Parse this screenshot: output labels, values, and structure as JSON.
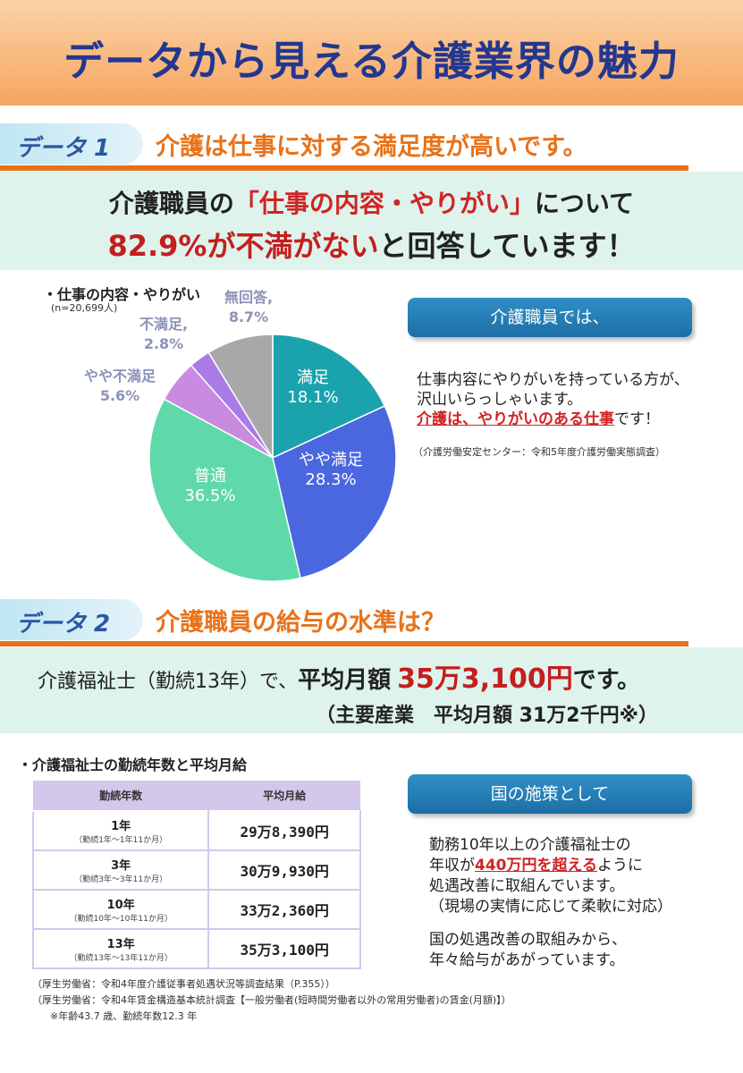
{
  "title": "データから見える介護業界の魅力",
  "section1": {
    "tag": "データ 1",
    "heading": "介護は仕事に対する満足度が高いです。",
    "line1_a": "介護職員の",
    "line1_b": "「仕事の内容・やりがい」",
    "line1_c": "について",
    "line2_a": "82.9%が不満がない",
    "line2_b": "と回答しています！"
  },
  "pie": {
    "title": "・仕事の内容・やりがい",
    "n": "(n=20,699人)",
    "slices": [
      {
        "name": "満足",
        "value": 18.1,
        "label": "18.1%",
        "color": "#1aa3ad"
      },
      {
        "name": "やや満足",
        "value": 28.3,
        "label": "28.3%",
        "color": "#4a67e0"
      },
      {
        "name": "普通",
        "value": 36.5,
        "label": "36.5%",
        "color": "#5fd9a9"
      },
      {
        "name": "やや不満足",
        "value": 5.6,
        "label": "5.6%",
        "color": "#c98be0"
      },
      {
        "name": "不満足,",
        "value": 2.8,
        "label": "2.8%",
        "color": "#a97be6"
      },
      {
        "name": "無回答,",
        "value": 8.7,
        "label": "8.7%",
        "color": "#a8a8a8"
      }
    ]
  },
  "chart_data": {
    "type": "pie",
    "title": "・仕事の内容・やりがい",
    "categories": [
      "満足",
      "やや満足",
      "普通",
      "やや不満足",
      "不満足",
      "無回答"
    ],
    "values": [
      18.1,
      28.3,
      36.5,
      5.6,
      2.8,
      8.7
    ]
  },
  "box1": {
    "pill": "介護職員では、",
    "line1": "仕事内容にやりがいを持っている方が、",
    "line2": "沢山いらっしゃいます。",
    "line3_red": "介護は、やりがいのある仕事",
    "line3_end": "です！",
    "source": "（介護労働安定センター：令和5年度介護労働実態調査）"
  },
  "section2": {
    "tag": "データ 2",
    "heading": "介護職員の給与の水準は？",
    "line1_a": "介護福祉士（勤続13年）で、",
    "line1_b": "平均月額",
    "line1_c": "35万3,100円",
    "line1_d": "です。",
    "line2": "（主要産業　平均月額 31万2千円※）"
  },
  "table": {
    "title": "・介護福祉士の勤続年数と平均月給",
    "headers": [
      "勤続年数",
      "平均月給"
    ],
    "rows": [
      {
        "year": "1年",
        "range": "（勤続1年～1年11か月）",
        "pay": "29万8,390円"
      },
      {
        "year": "3年",
        "range": "（勤続3年～3年11か月）",
        "pay": "30万9,930円"
      },
      {
        "year": "10年",
        "range": "（勤続10年～10年11か月）",
        "pay": "33万2,360円"
      },
      {
        "year": "13年",
        "range": "（勤続13年～13年11か月）",
        "pay": "35万3,100円"
      }
    ]
  },
  "box2": {
    "pill": "国の施策として",
    "line1": "勤務10年以上の介護福祉士の",
    "line2_a": "年収が",
    "line2_red": "440万円を超える",
    "line2_b": "ように",
    "line3": "処遇改善に取組んでいます。",
    "line4": "（現場の実情に応じて柔軟に対応）",
    "line5": "国の処遇改善の取組みから、",
    "line6": "年々給与があがっています。"
  },
  "footnotes": {
    "f1": "（厚生労働省：令和4年度介護従事者処遇状況等調査結果（P.355））",
    "f2": "（厚生労働省：令和4年賃金構造基本統計調査【一般労働者(短時間労働者以外の常用労働者)の賃金(月額)】）",
    "f3": "※年齢43.7 歳、勤続年数12.3 年"
  }
}
